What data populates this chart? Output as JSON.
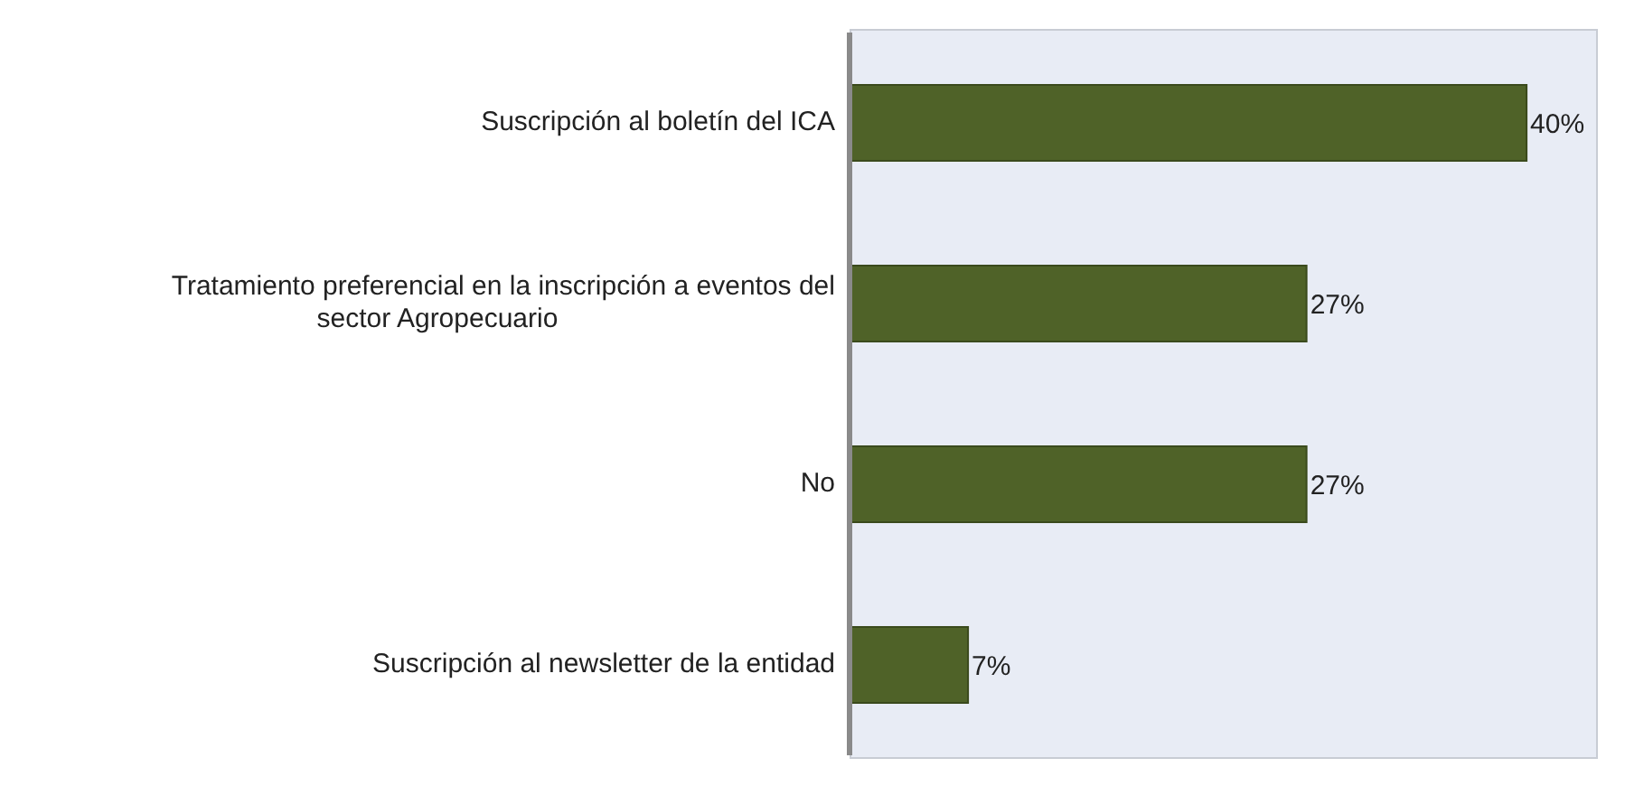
{
  "chart_data": {
    "type": "bar",
    "orientation": "horizontal",
    "categories": [
      "Suscripción al boletín del ICA",
      "Tratamiento preferencial en la inscripción a eventos  del sector Agropecuario",
      "No",
      "Suscripción al newsletter de la entidad"
    ],
    "values": [
      40,
      27,
      27,
      7
    ],
    "value_labels": [
      "40%",
      "27%",
      "27%",
      "7%"
    ],
    "color": "#4f6228",
    "grid": false,
    "legend": false
  }
}
